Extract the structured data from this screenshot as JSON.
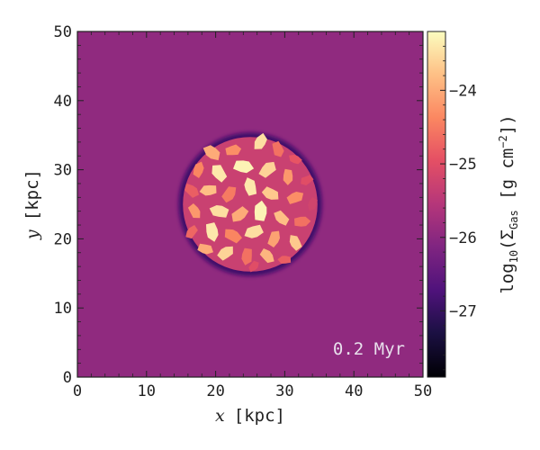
{
  "chart_data": {
    "type": "heatmap",
    "xlabel_var": "x",
    "xlabel_unit": "[kpc]",
    "ylabel_var": "y",
    "ylabel_unit": "[kpc]",
    "xlim": [
      0,
      50
    ],
    "ylim": [
      0,
      50
    ],
    "xticks": [
      "0",
      "10",
      "20",
      "30",
      "40",
      "50"
    ],
    "yticks": [
      "0",
      "10",
      "20",
      "30",
      "40",
      "50"
    ],
    "annotation": "0.2 Myr",
    "colorbar": {
      "label_prefix": "log",
      "label_sub": "10",
      "label_sigma": "(Σ",
      "label_sigma_sub": "Gas",
      "label_units": " [g cm",
      "label_exp": "−2",
      "label_close": "])",
      "range": [
        -27.9,
        -23.2
      ],
      "ticks": [
        "−24",
        "−25",
        "−26",
        "−27"
      ],
      "tick_values": [
        -24,
        -25,
        -26,
        -27
      ],
      "colormap": "magma"
    },
    "background_value": -25.95,
    "disk": {
      "center": [
        25,
        25
      ],
      "radius": 10
    },
    "clumps": [
      {
        "x": 19.5,
        "y": 32.5,
        "r": 1.4,
        "v": -24.0
      },
      {
        "x": 22.5,
        "y": 32.8,
        "r": 1.2,
        "v": -24.3
      },
      {
        "x": 26.5,
        "y": 34.0,
        "r": 1.3,
        "v": -23.5
      },
      {
        "x": 29.0,
        "y": 33.0,
        "r": 1.2,
        "v": -24.6
      },
      {
        "x": 31.5,
        "y": 31.5,
        "r": 1.0,
        "v": -24.9
      },
      {
        "x": 33.2,
        "y": 28.5,
        "r": 1.0,
        "v": -25.0
      },
      {
        "x": 17.5,
        "y": 30.0,
        "r": 1.2,
        "v": -24.4
      },
      {
        "x": 20.5,
        "y": 29.5,
        "r": 1.4,
        "v": -23.4
      },
      {
        "x": 24.0,
        "y": 30.5,
        "r": 1.5,
        "v": -23.3
      },
      {
        "x": 27.5,
        "y": 30.0,
        "r": 1.4,
        "v": -23.6
      },
      {
        "x": 30.5,
        "y": 29.0,
        "r": 1.2,
        "v": -24.2
      },
      {
        "x": 16.5,
        "y": 27.0,
        "r": 1.2,
        "v": -24.8
      },
      {
        "x": 19.0,
        "y": 27.0,
        "r": 1.3,
        "v": -23.8
      },
      {
        "x": 22.0,
        "y": 26.5,
        "r": 1.3,
        "v": -24.5
      },
      {
        "x": 25.0,
        "y": 27.5,
        "r": 1.4,
        "v": -23.4
      },
      {
        "x": 28.0,
        "y": 26.5,
        "r": 1.3,
        "v": -23.7
      },
      {
        "x": 31.5,
        "y": 26.0,
        "r": 1.3,
        "v": -24.3
      },
      {
        "x": 34.0,
        "y": 25.0,
        "r": 1.0,
        "v": -25.2
      },
      {
        "x": 17.0,
        "y": 24.0,
        "r": 1.2,
        "v": -24.2
      },
      {
        "x": 20.5,
        "y": 24.0,
        "r": 1.4,
        "v": -23.5
      },
      {
        "x": 23.5,
        "y": 23.5,
        "r": 1.4,
        "v": -24.0
      },
      {
        "x": 26.5,
        "y": 24.0,
        "r": 1.5,
        "v": -23.3
      },
      {
        "x": 29.5,
        "y": 23.0,
        "r": 1.3,
        "v": -23.8
      },
      {
        "x": 32.5,
        "y": 22.5,
        "r": 1.2,
        "v": -24.6
      },
      {
        "x": 16.5,
        "y": 21.0,
        "r": 1.1,
        "v": -24.7
      },
      {
        "x": 19.5,
        "y": 21.0,
        "r": 1.4,
        "v": -23.4
      },
      {
        "x": 22.5,
        "y": 20.5,
        "r": 1.4,
        "v": -24.4
      },
      {
        "x": 25.5,
        "y": 21.0,
        "r": 1.4,
        "v": -23.5
      },
      {
        "x": 28.5,
        "y": 20.0,
        "r": 1.3,
        "v": -24.1
      },
      {
        "x": 31.5,
        "y": 19.5,
        "r": 1.2,
        "v": -23.7
      },
      {
        "x": 18.5,
        "y": 18.5,
        "r": 1.2,
        "v": -24.0
      },
      {
        "x": 21.5,
        "y": 18.0,
        "r": 1.3,
        "v": -23.6
      },
      {
        "x": 24.5,
        "y": 17.5,
        "r": 1.3,
        "v": -24.6
      },
      {
        "x": 27.5,
        "y": 17.5,
        "r": 1.2,
        "v": -23.9
      },
      {
        "x": 30.0,
        "y": 17.0,
        "r": 1.0,
        "v": -24.8
      },
      {
        "x": 25.5,
        "y": 16.0,
        "r": 0.9,
        "v": -25.0
      }
    ]
  }
}
